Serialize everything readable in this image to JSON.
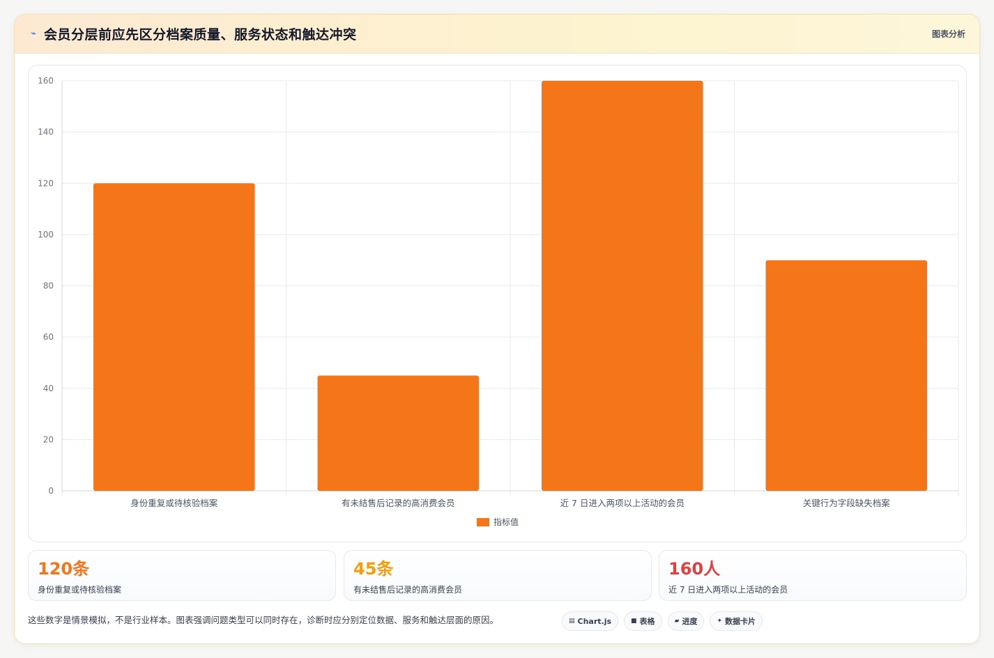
{
  "header": {
    "title": "会员分层前应先区分档案质量、服务状态和触达冲突",
    "tag": "图表分析",
    "icon": "trend-icon"
  },
  "chart_data": {
    "type": "bar",
    "categories": [
      "身份重复或待核验档案",
      "有未结售后记录的高消费会员",
      "近 7 日进入两项以上活动的会员",
      "关键行为字段缺失档案"
    ],
    "series": [
      {
        "name": "指标值",
        "values": [
          120,
          45,
          160,
          90
        ],
        "color": "#f57519"
      }
    ],
    "ylim": [
      0,
      160
    ],
    "yticks": [
      0,
      20,
      40,
      60,
      80,
      100,
      120,
      140,
      160
    ],
    "grid": true,
    "legend_position": "bottom"
  },
  "stats": [
    {
      "value": "120条",
      "label": "身份重复或待核验档案",
      "color": "#f57519"
    },
    {
      "value": "45条",
      "label": "有未结售后记录的高消费会员",
      "color": "#f59e0b"
    },
    {
      "value": "160人",
      "label": "近 7 日进入两项以上活动的会员",
      "color": "#e53e3e"
    }
  ],
  "footer": {
    "note": "这些数字是情景模拟，不是行业样本。图表强调问题类型可以同时存在，诊断时应分别定位数据、服务和触达层面的原因。",
    "chips": [
      {
        "icon": "chart-icon",
        "glyph": "▤",
        "label": "Chart.js"
      },
      {
        "icon": "table-icon",
        "glyph": "■",
        "label": "表格"
      },
      {
        "icon": "progress-icon",
        "glyph": "▰",
        "label": "进度"
      },
      {
        "icon": "sparkle-icon",
        "glyph": "✦",
        "label": "数据卡片"
      }
    ]
  }
}
